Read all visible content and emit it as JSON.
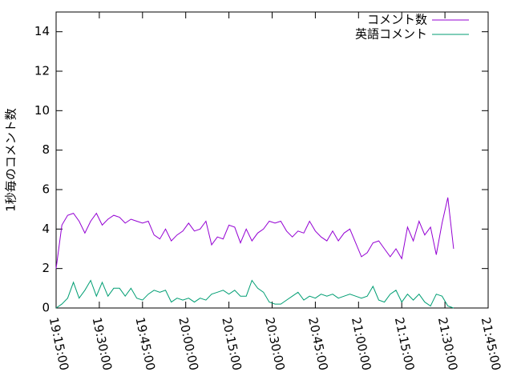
{
  "chart_data": {
    "type": "line",
    "ylabel": "1秒毎のコメント数",
    "x": [
      "19:15:00",
      "19:17:00",
      "19:19:00",
      "19:21:00",
      "19:23:00",
      "19:25:00",
      "19:27:00",
      "19:29:00",
      "19:31:00",
      "19:33:00",
      "19:35:00",
      "19:37:00",
      "19:39:00",
      "19:41:00",
      "19:43:00",
      "19:45:00",
      "19:47:00",
      "19:49:00",
      "19:51:00",
      "19:53:00",
      "19:55:00",
      "19:57:00",
      "19:59:00",
      "20:01:00",
      "20:03:00",
      "20:05:00",
      "20:07:00",
      "20:09:00",
      "20:11:00",
      "20:13:00",
      "20:15:00",
      "20:17:00",
      "20:19:00",
      "20:21:00",
      "20:23:00",
      "20:25:00",
      "20:27:00",
      "20:29:00",
      "20:31:00",
      "20:33:00",
      "20:35:00",
      "20:37:00",
      "20:39:00",
      "20:41:00",
      "20:43:00",
      "20:45:00",
      "20:47:00",
      "20:49:00",
      "20:51:00",
      "20:53:00",
      "20:55:00",
      "20:57:00",
      "20:59:00",
      "21:01:00",
      "21:03:00",
      "21:05:00",
      "21:07:00",
      "21:09:00",
      "21:11:00",
      "21:13:00",
      "21:15:00",
      "21:17:00",
      "21:19:00",
      "21:21:00",
      "21:23:00",
      "21:25:00",
      "21:27:00",
      "21:29:00",
      "21:31:00",
      "21:33:00"
    ],
    "series": [
      {
        "name": "コメント数",
        "color": "#9400d3",
        "values": [
          2.0,
          4.2,
          4.7,
          4.8,
          4.4,
          3.8,
          4.4,
          4.8,
          4.2,
          4.5,
          4.7,
          4.6,
          4.3,
          4.5,
          4.4,
          4.3,
          4.4,
          3.7,
          3.5,
          4.0,
          3.4,
          3.7,
          3.9,
          4.3,
          3.9,
          4.0,
          4.4,
          3.2,
          3.6,
          3.5,
          4.2,
          4.1,
          3.3,
          4.0,
          3.4,
          3.8,
          4.0,
          4.4,
          4.3,
          4.4,
          3.9,
          3.6,
          3.9,
          3.8,
          4.4,
          3.9,
          3.6,
          3.4,
          3.9,
          3.4,
          3.8,
          4.0,
          3.3,
          2.6,
          2.8,
          3.3,
          3.4,
          3.0,
          2.6,
          3.0,
          2.5,
          4.1,
          3.4,
          4.4,
          3.7,
          4.1,
          2.7,
          4.3,
          5.6,
          3.0
        ]
      },
      {
        "name": "英語コメント",
        "color": "#009e73",
        "values": [
          0.0,
          0.2,
          0.5,
          1.3,
          0.5,
          0.9,
          1.4,
          0.6,
          1.3,
          0.6,
          1.0,
          1.0,
          0.6,
          1.0,
          0.5,
          0.4,
          0.7,
          0.9,
          0.8,
          0.9,
          0.3,
          0.5,
          0.4,
          0.5,
          0.3,
          0.5,
          0.4,
          0.7,
          0.8,
          0.9,
          0.7,
          0.9,
          0.6,
          0.6,
          1.4,
          1.0,
          0.8,
          0.3,
          0.2,
          0.2,
          0.4,
          0.6,
          0.8,
          0.4,
          0.6,
          0.5,
          0.7,
          0.6,
          0.7,
          0.5,
          0.6,
          0.7,
          0.6,
          0.5,
          0.6,
          1.1,
          0.4,
          0.3,
          0.7,
          0.9,
          0.3,
          0.7,
          0.4,
          0.7,
          0.3,
          0.1,
          0.7,
          0.6,
          0.1,
          0.0
        ]
      }
    ],
    "xlim": [
      "19:15:00",
      "21:45:00"
    ],
    "xticks": [
      "19:15:00",
      "19:30:00",
      "19:45:00",
      "20:00:00",
      "20:15:00",
      "20:30:00",
      "20:45:00",
      "21:00:00",
      "21:15:00",
      "21:30:00",
      "21:45:00"
    ],
    "ylim": [
      0,
      15
    ],
    "yticks": [
      0,
      2,
      4,
      6,
      8,
      10,
      12,
      14
    ],
    "legend": "top-right"
  }
}
